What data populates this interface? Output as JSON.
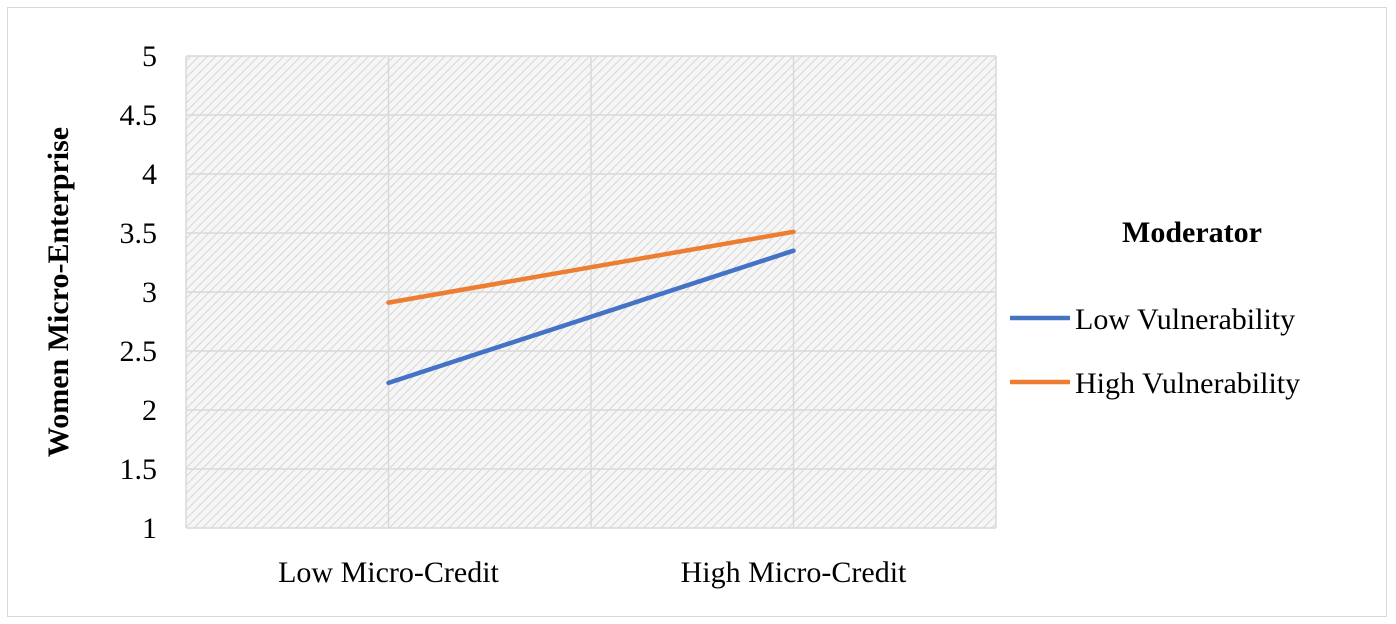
{
  "chart_data": {
    "type": "line",
    "categories": [
      "Low Micro-Credit",
      "High Micro-Credit"
    ],
    "series": [
      {
        "name": "Low Vulnerability",
        "values": [
          2.23,
          3.35
        ],
        "color": "#4472C4"
      },
      {
        "name": "High Vulnerability",
        "values": [
          2.91,
          3.51
        ],
        "color": "#ED7D31"
      }
    ],
    "ylabel": "Women Micro-Enterprise",
    "xlabel": "",
    "title": "",
    "ylim": [
      1,
      5
    ],
    "yticks": [
      "1",
      "1.5",
      "2",
      "2.5",
      "3",
      "3.5",
      "4",
      "4.5",
      "5"
    ],
    "legend": {
      "title": "Moderator",
      "position": "right"
    },
    "grid": true,
    "plot_background": "hatched-gray"
  }
}
